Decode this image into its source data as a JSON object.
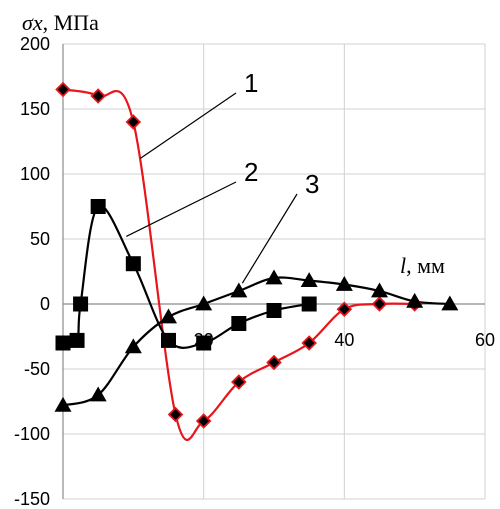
{
  "chart_data": {
    "type": "line",
    "title": "",
    "ylabel": "σx, МПа",
    "xlabel": "l, мм",
    "xlim": [
      0,
      60
    ],
    "ylim": [
      -150,
      200
    ],
    "x_ticks": [
      "20",
      "40",
      "60"
    ],
    "y_ticks": [
      "-150",
      "-100",
      "-50",
      "0",
      "50",
      "100",
      "150",
      "200"
    ],
    "grid": true,
    "series": [
      {
        "name": "1",
        "line_color": "#e8151b",
        "marker": "diamond",
        "marker_fill": "#000000",
        "marker_edge": "#e8151b",
        "points": [
          [
            0,
            165
          ],
          [
            5,
            160
          ],
          [
            10,
            140
          ],
          [
            16,
            -85
          ],
          [
            20,
            -90
          ],
          [
            25,
            -60
          ],
          [
            30,
            -45
          ],
          [
            35,
            -30
          ],
          [
            40,
            -4
          ],
          [
            45,
            0
          ],
          [
            50,
            0
          ]
        ]
      },
      {
        "name": "2",
        "line_color": "#000000",
        "marker": "square",
        "marker_fill": "#000000",
        "points": [
          [
            0,
            -30
          ],
          [
            2,
            -28
          ],
          [
            2.5,
            0
          ],
          [
            5,
            75
          ],
          [
            10,
            31
          ],
          [
            15,
            -28
          ],
          [
            20,
            -30
          ],
          [
            25,
            -15
          ],
          [
            30,
            -5
          ],
          [
            35,
            0
          ]
        ]
      },
      {
        "name": "3",
        "line_color": "#000000",
        "marker": "triangle",
        "marker_fill": "#000000",
        "points": [
          [
            0,
            -78
          ],
          [
            5,
            -70
          ],
          [
            10,
            -33
          ],
          [
            15,
            -10
          ],
          [
            20,
            0
          ],
          [
            25,
            10
          ],
          [
            30,
            20
          ],
          [
            35,
            18
          ],
          [
            40,
            15
          ],
          [
            45,
            10
          ],
          [
            50,
            2
          ],
          [
            55,
            0
          ]
        ]
      }
    ],
    "annotations": [
      {
        "text": "1",
        "series": "1",
        "at": [
          11,
          112
        ]
      },
      {
        "text": "2",
        "series": "2",
        "at": [
          9,
          52
        ]
      },
      {
        "text": "3",
        "series": "3",
        "at": [
          25.5,
          16
        ]
      }
    ]
  }
}
